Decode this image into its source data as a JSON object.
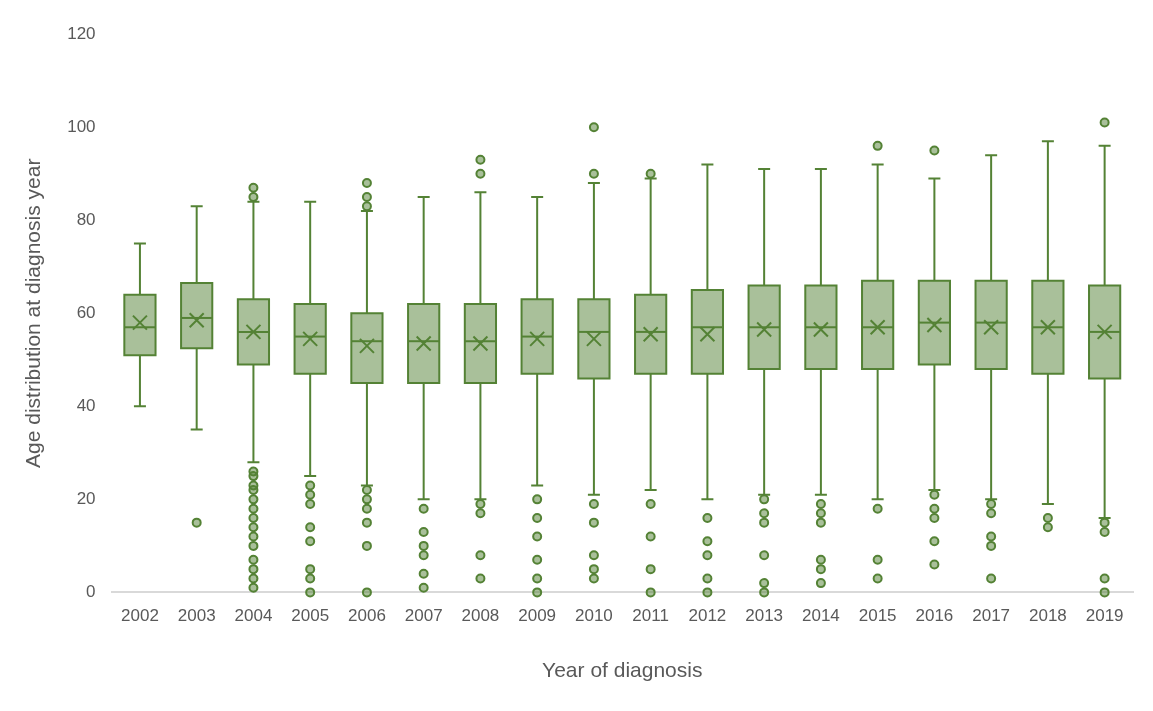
{
  "chart_data": {
    "type": "box",
    "xlabel": "Year of diagnosis",
    "ylabel": "Age distribution at diagnosis year",
    "categories": [
      "2002",
      "2003",
      "2004",
      "2005",
      "2006",
      "2007",
      "2008",
      "2009",
      "2010",
      "2011",
      "2012",
      "2013",
      "2014",
      "2015",
      "2016",
      "2017",
      "2018",
      "2019"
    ],
    "color": "#548235",
    "ylim": [
      0,
      120
    ],
    "yticks": [
      0,
      20,
      40,
      60,
      80,
      100,
      120
    ],
    "grid": false,
    "legend": false,
    "boxes": [
      {
        "low": 40,
        "q1": 51,
        "median": 57,
        "q3": 64,
        "high": 75,
        "mean": 58
      },
      {
        "low": 35,
        "q1": 52.5,
        "median": 59,
        "q3": 66.5,
        "high": 83,
        "mean": 58.5,
        "outliers": [
          15
        ]
      },
      {
        "low": 28,
        "q1": 49,
        "median": 56,
        "q3": 63,
        "high": 84,
        "mean": 56,
        "outliers": [
          87,
          85,
          26,
          25,
          23,
          22,
          20,
          18,
          16,
          14,
          12,
          10,
          7,
          5,
          3,
          1
        ]
      },
      {
        "low": 25,
        "q1": 47,
        "median": 55,
        "q3": 62,
        "high": 84,
        "mean": 54.5,
        "outliers": [
          23,
          21,
          19,
          14,
          11,
          5,
          3,
          0
        ]
      },
      {
        "low": 23,
        "q1": 45,
        "median": 54,
        "q3": 60,
        "high": 82,
        "mean": 53,
        "outliers": [
          88,
          85,
          83,
          22,
          20,
          18,
          15,
          10,
          0
        ]
      },
      {
        "low": 20,
        "q1": 45,
        "median": 54,
        "q3": 62,
        "high": 85,
        "mean": 53.5,
        "outliers": [
          18,
          13,
          10,
          8,
          4,
          1
        ]
      },
      {
        "low": 20,
        "q1": 45,
        "median": 54,
        "q3": 62,
        "high": 86,
        "mean": 53.5,
        "outliers": [
          93,
          90,
          19,
          17,
          8,
          3
        ]
      },
      {
        "low": 23,
        "q1": 47,
        "median": 55,
        "q3": 63,
        "high": 85,
        "mean": 54.5,
        "outliers": [
          20,
          16,
          12,
          7,
          3,
          0
        ]
      },
      {
        "low": 21,
        "q1": 46,
        "median": 56,
        "q3": 63,
        "high": 88,
        "mean": 54.5,
        "outliers": [
          100,
          90,
          19,
          15,
          8,
          5,
          3
        ]
      },
      {
        "low": 22,
        "q1": 47,
        "median": 56,
        "q3": 64,
        "high": 89,
        "mean": 55.5,
        "outliers": [
          90,
          19,
          12,
          5,
          0
        ]
      },
      {
        "low": 20,
        "q1": 47,
        "median": 57,
        "q3": 65,
        "high": 92,
        "mean": 55.5,
        "outliers": [
          16,
          11,
          8,
          3,
          0
        ]
      },
      {
        "low": 21,
        "q1": 48,
        "median": 57,
        "q3": 66,
        "high": 91,
        "mean": 56.5,
        "outliers": [
          20,
          17,
          15,
          8,
          2,
          0
        ]
      },
      {
        "low": 21,
        "q1": 48,
        "median": 57,
        "q3": 66,
        "high": 91,
        "mean": 56.5,
        "outliers": [
          19,
          17,
          15,
          7,
          5,
          2
        ]
      },
      {
        "low": 20,
        "q1": 48,
        "median": 57,
        "q3": 67,
        "high": 92,
        "mean": 57,
        "outliers": [
          96,
          18,
          7,
          3
        ]
      },
      {
        "low": 22,
        "q1": 49,
        "median": 58,
        "q3": 67,
        "high": 89,
        "mean": 57.5,
        "outliers": [
          95,
          21,
          18,
          16,
          11,
          6
        ]
      },
      {
        "low": 20,
        "q1": 48,
        "median": 58,
        "q3": 67,
        "high": 94,
        "mean": 57,
        "outliers": [
          19,
          17,
          12,
          10,
          3
        ]
      },
      {
        "low": 19,
        "q1": 47,
        "median": 57,
        "q3": 67,
        "high": 97,
        "mean": 57,
        "outliers": [
          16,
          14
        ]
      },
      {
        "low": 16,
        "q1": 46,
        "median": 56,
        "q3": 66,
        "high": 96,
        "mean": 56,
        "outliers": [
          101,
          15,
          13,
          3,
          0
        ]
      }
    ]
  }
}
